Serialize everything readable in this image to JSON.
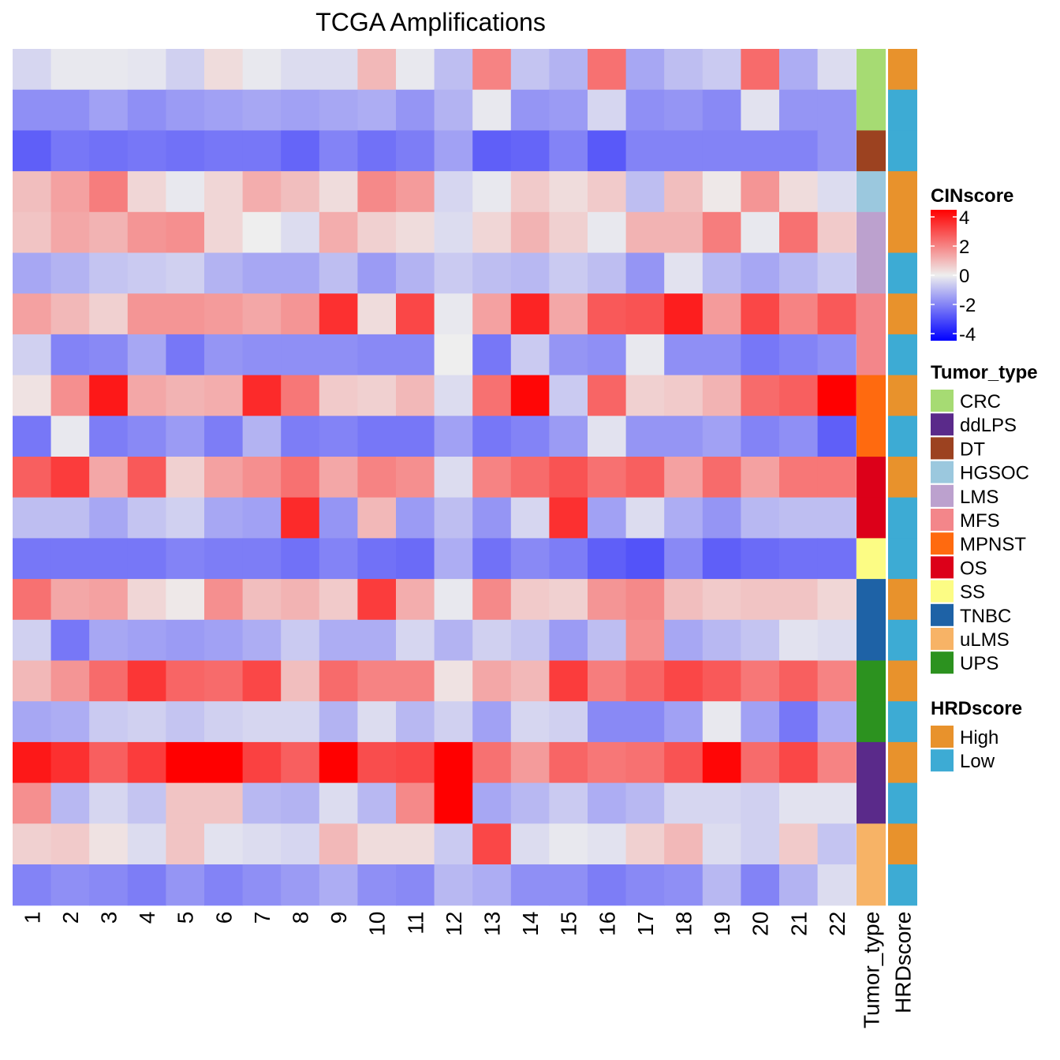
{
  "chart_data": {
    "type": "heatmap",
    "title": "TCGA Amplifications",
    "columns": [
      "1",
      "2",
      "3",
      "4",
      "5",
      "6",
      "7",
      "8",
      "9",
      "10",
      "11",
      "12",
      "13",
      "14",
      "15",
      "16",
      "17",
      "18",
      "19",
      "20",
      "21",
      "22"
    ],
    "row_annotations": {
      "Tumor_type": [
        "CRC",
        "CRC",
        "DT",
        "HGSOC",
        "LMS",
        "LMS",
        "MFS",
        "MFS",
        "MPNST",
        "MPNST",
        "OS",
        "OS",
        "SS",
        "TNBC",
        "TNBC",
        "UPS",
        "UPS",
        "ddLPS",
        "ddLPS",
        "uLMS",
        "uLMS"
      ],
      "HRDscore": [
        "High",
        "Low",
        "Low",
        "High",
        "High",
        "Low",
        "High",
        "Low",
        "High",
        "Low",
        "High",
        "Low",
        "Low",
        "High",
        "Low",
        "High",
        "Low",
        "High",
        "Low",
        "High",
        "Low"
      ]
    },
    "annotation_labels": [
      "Tumor_type",
      "HRDscore"
    ],
    "values": [
      [
        -0.4,
        -0.1,
        -0.1,
        -0.15,
        -0.5,
        0.3,
        -0.1,
        -0.3,
        -0.3,
        0.9,
        -0.1,
        -0.8,
        1.8,
        -0.7,
        -1,
        2.1,
        -1.2,
        -0.8,
        -0.6,
        2.2,
        -1.1,
        -0.3
      ],
      [
        -1.6,
        -1.6,
        -1.3,
        -1.6,
        -1.4,
        -1.3,
        -1.2,
        -1.3,
        -1.2,
        -1.1,
        -1.5,
        -1,
        -0.1,
        -1.5,
        -1.4,
        -0.4,
        -1.6,
        -1.5,
        -1.7,
        -0.2,
        -1.5,
        -1.5
      ],
      [
        -2.4,
        -2,
        -2.1,
        -2,
        -2.1,
        -2,
        -2,
        -2.3,
        -1.8,
        -2.1,
        -1.9,
        -1.3,
        -2.4,
        -2.3,
        -1.8,
        -2.5,
        -1.8,
        -1.8,
        -1.8,
        -1.8,
        -1.8,
        -1.5
      ],
      [
        0.8,
        1.3,
        1.9,
        0.4,
        -0.1,
        0.4,
        1.1,
        0.8,
        0.3,
        1.7,
        1.4,
        -0.4,
        -0.1,
        0.6,
        0.3,
        0.6,
        -0.8,
        0.8,
        0.1,
        1.5,
        0.3,
        -0.3
      ],
      [
        0.7,
        1.2,
        1,
        1.5,
        1.6,
        0.4,
        0,
        -0.3,
        1.1,
        0.5,
        0.3,
        -0.3,
        0.4,
        1,
        0.5,
        -0.1,
        1,
        1,
        1.9,
        -0.1,
        2.1,
        0.6
      ],
      [
        -1.2,
        -1,
        -0.7,
        -0.6,
        -0.5,
        -1,
        -1.2,
        -1.2,
        -0.8,
        -1.4,
        -1,
        -0.6,
        -0.8,
        -0.9,
        -0.6,
        -0.8,
        -1.5,
        -0.2,
        -0.9,
        -1.2,
        -0.9,
        -0.6
      ],
      [
        1.3,
        0.9,
        0.5,
        1.5,
        1.5,
        1.4,
        1.2,
        1.5,
        3.2,
        0.3,
        2.8,
        -0.1,
        1.3,
        3.4,
        1.2,
        2.5,
        2.6,
        3.5,
        1.4,
        2.8,
        1.8,
        2.5
      ],
      [
        -0.5,
        -1.8,
        -1.7,
        -1.2,
        -2,
        -1.5,
        -1.6,
        -1.6,
        -1.6,
        -1.7,
        -1.7,
        0,
        -2,
        -0.6,
        -1.5,
        -1.6,
        -0.1,
        -1.6,
        -1.6,
        -2,
        -1.8,
        -1.6
      ],
      [
        0.2,
        1.6,
        3.6,
        1.2,
        1,
        1.1,
        3.3,
        2,
        0.6,
        0.5,
        0.9,
        -0.3,
        2.1,
        3.9,
        -0.6,
        2.3,
        0.5,
        0.6,
        1,
        2.2,
        2.4,
        4
      ],
      [
        -2,
        -0.1,
        -1.9,
        -1.7,
        -1.4,
        -1.9,
        -1,
        -1.9,
        -1.8,
        -2,
        -2,
        -1.3,
        -2,
        -1.8,
        -1.4,
        -0.2,
        -1.5,
        -1.5,
        -1.3,
        -1.8,
        -1.6,
        -2.4
      ],
      [
        2.4,
        3,
        1.2,
        2.5,
        0.5,
        1.3,
        1.6,
        2.1,
        1.2,
        1.8,
        1.6,
        -0.3,
        1.8,
        2.2,
        2.6,
        2.1,
        2.4,
        1.3,
        2.2,
        1.3,
        2,
        2
      ],
      [
        -0.8,
        -0.8,
        -1.2,
        -0.7,
        -0.5,
        -1.2,
        -1.3,
        3.3,
        -1.5,
        0.9,
        -1.4,
        -0.8,
        -1.5,
        -0.4,
        3.2,
        -1.3,
        -0.3,
        -1.1,
        -1.5,
        -0.9,
        -0.8,
        -0.8
      ],
      [
        -2,
        -2,
        -2,
        -2,
        -1.8,
        -1.9,
        -1.9,
        -2.1,
        -1.8,
        -2.1,
        -2.2,
        -1.1,
        -2.1,
        -1.7,
        -1.9,
        -2.4,
        -2.6,
        -1.7,
        -2.4,
        -2.2,
        -2.1,
        -2.1
      ],
      [
        2.1,
        1.2,
        1.3,
        0.4,
        0.1,
        1.6,
        0.8,
        1,
        0.6,
        3,
        1.1,
        -0.1,
        1.7,
        0.6,
        0.5,
        1.5,
        1.7,
        0.8,
        0.6,
        0.7,
        0.7,
        0.4
      ],
      [
        -0.5,
        -2,
        -1.2,
        -1.3,
        -1.4,
        -1.3,
        -1.1,
        -0.6,
        -1.1,
        -1.1,
        -0.4,
        -1,
        -0.5,
        -0.7,
        -1.4,
        -0.8,
        1.6,
        -1.2,
        -0.9,
        -0.7,
        -0.2,
        -0.3
      ],
      [
        0.9,
        1.5,
        2.2,
        3.1,
        2.3,
        2.2,
        2.8,
        0.8,
        2.2,
        1.8,
        1.8,
        0.2,
        1.2,
        0.9,
        3,
        1.9,
        2.3,
        2.8,
        2.5,
        2,
        2.4,
        1.8
      ],
      [
        -1.2,
        -1.1,
        -0.6,
        -0.5,
        -0.7,
        -0.5,
        -0.4,
        -0.4,
        -1,
        -0.3,
        -0.9,
        -0.5,
        -1.3,
        -0.4,
        -0.5,
        -1.7,
        -1.7,
        -1.3,
        -0.1,
        -1.3,
        -2,
        -1.1
      ],
      [
        3.6,
        3.2,
        2.4,
        3,
        4,
        4,
        2.9,
        2.4,
        4,
        2.7,
        2.8,
        4,
        2.1,
        1.4,
        2.3,
        2,
        2.1,
        2.6,
        3.9,
        2.2,
        2.8,
        1.8
      ],
      [
        1.6,
        -0.9,
        -0.4,
        -0.7,
        0.7,
        0.7,
        -0.9,
        -1,
        -0.3,
        -0.9,
        1.7,
        4,
        -1.2,
        -0.9,
        -0.6,
        -1.1,
        -0.9,
        -0.4,
        -0.4,
        -0.5,
        -0.2,
        -0.2
      ],
      [
        0.5,
        0.6,
        0.2,
        -0.3,
        0.7,
        -0.2,
        -0.3,
        -0.4,
        0.9,
        0.3,
        0.3,
        -0.6,
        2.8,
        -0.3,
        -0.1,
        -0.2,
        0.5,
        0.9,
        -0.3,
        -0.5,
        0.6,
        -0.7
      ],
      [
        -1.8,
        -1.6,
        -1.7,
        -1.9,
        -1.5,
        -1.8,
        -1.6,
        -1.4,
        -1.1,
        -1.6,
        -1.7,
        -0.9,
        -1.1,
        -1.6,
        -1.6,
        -1.9,
        -1.7,
        -1.6,
        -0.9,
        -1.8,
        -1,
        -0.3
      ]
    ],
    "color_scale": {
      "title": "CINscore",
      "ticks": [
        "4",
        "2",
        "0",
        "-2",
        "-4"
      ],
      "tick_values": [
        4,
        2,
        0,
        -2,
        -4
      ],
      "min": -4,
      "max": 4,
      "low_color": "#0000FF",
      "mid_color": "#EEEEEE",
      "high_color": "#FF0000"
    },
    "legends": [
      {
        "title": "Tumor_type",
        "items": [
          {
            "label": "CRC",
            "color": "#A6DB73"
          },
          {
            "label": "ddLPS",
            "color": "#5A2A8A"
          },
          {
            "label": "DT",
            "color": "#9C4220"
          },
          {
            "label": "HGSOC",
            "color": "#9BC8DE"
          },
          {
            "label": "LMS",
            "color": "#BCA1CE"
          },
          {
            "label": "MFS",
            "color": "#F3868A"
          },
          {
            "label": "MPNST",
            "color": "#FF6A0F"
          },
          {
            "label": "OS",
            "color": "#DC0019"
          },
          {
            "label": "SS",
            "color": "#FCFC84"
          },
          {
            "label": "TNBC",
            "color": "#1E62A6"
          },
          {
            "label": "uLMS",
            "color": "#F7B366"
          },
          {
            "label": "UPS",
            "color": "#2C921F"
          }
        ]
      },
      {
        "title": "HRDscore",
        "items": [
          {
            "label": "High",
            "color": "#E8922C"
          },
          {
            "label": "Low",
            "color": "#3DABD4"
          }
        ]
      }
    ]
  }
}
